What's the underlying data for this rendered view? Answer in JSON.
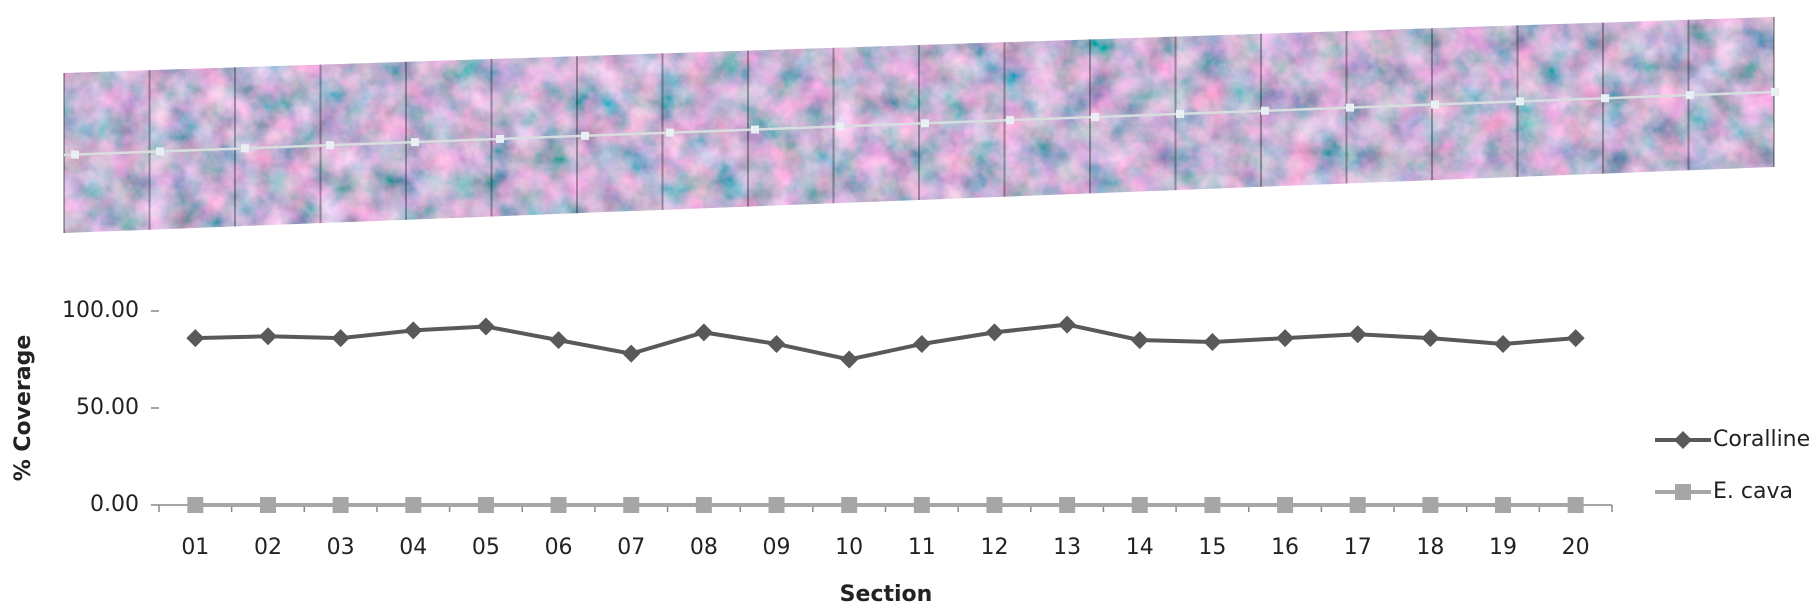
{
  "chart_data": {
    "type": "line",
    "x_label": "Section",
    "y_label": "% Coverage",
    "categories": [
      "01",
      "02",
      "03",
      "04",
      "05",
      "06",
      "07",
      "08",
      "09",
      "10",
      "11",
      "12",
      "13",
      "14",
      "15",
      "16",
      "17",
      "18",
      "19",
      "20"
    ],
    "series": [
      {
        "name": "Coralline",
        "color": "#595959",
        "marker": "diamond",
        "values": [
          86,
          87,
          86,
          90,
          92,
          85,
          78,
          89,
          83,
          75,
          83,
          89,
          93,
          85,
          84,
          86,
          88,
          86,
          83,
          86
        ]
      },
      {
        "name": "E. cava",
        "color": "#a6a6a6",
        "marker": "square",
        "values": [
          0,
          0,
          0,
          0,
          0,
          0,
          0,
          0,
          0,
          0,
          0,
          0,
          0,
          0,
          0,
          0,
          0,
          0,
          0,
          0
        ]
      }
    ],
    "ylim": [
      0,
      100
    ],
    "yticks": [
      {
        "value": 0,
        "label": "0.00"
      },
      {
        "value": 50,
        "label": "50.00"
      },
      {
        "value": 100,
        "label": "100.00"
      }
    ],
    "grid": false,
    "legend": "right"
  }
}
